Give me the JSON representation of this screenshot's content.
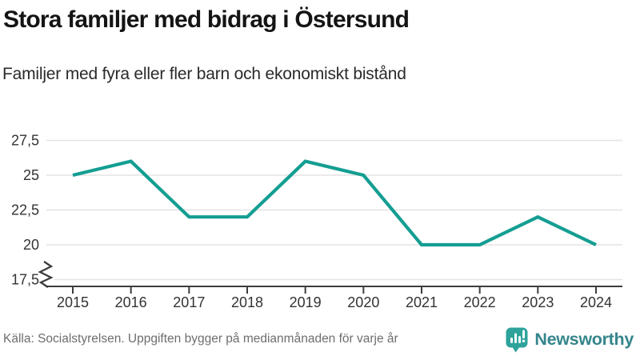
{
  "header": {
    "title": "Stora familjer med bidrag i Östersund",
    "subtitle": "Familjer med fyra eller fler barn och ekonomiskt bistånd"
  },
  "chart_data": {
    "type": "line",
    "title": "Stora familjer med bidrag i Östersund",
    "subtitle": "Familjer med fyra eller fler barn och ekonomiskt bistånd",
    "x": [
      2015,
      2016,
      2017,
      2018,
      2019,
      2020,
      2021,
      2022,
      2023,
      2024
    ],
    "series": [
      {
        "name": "Familjer med fyra eller fler barn och ekonomiskt bistånd",
        "values": [
          25,
          26,
          22,
          22,
          26,
          25,
          20,
          20,
          22,
          20
        ]
      }
    ],
    "xlabel": "",
    "ylabel": "",
    "ylim": [
      17.5,
      27.5
    ],
    "yticks": [
      {
        "value": 17.5,
        "label": "17,5"
      },
      {
        "value": 20,
        "label": "20"
      },
      {
        "value": 22.5,
        "label": "22,5"
      },
      {
        "value": 25,
        "label": "25"
      },
      {
        "value": 27.5,
        "label": "27,5"
      }
    ],
    "axis_break": true,
    "grid": "horizontal",
    "legend": "none",
    "line_color": "#149E92"
  },
  "footer": {
    "source": "Källa: Socialstyrelsen. Uppgiften bygger på medianmånaden för varje år",
    "brand": "Newsworthy"
  },
  "colors": {
    "line": "#149E92",
    "gridline": "#e3e3e3",
    "axis": "#3d3d3d",
    "tick_label": "#333333",
    "source_text": "#6e6e6e",
    "logo_icon": "#2EA39B",
    "wordmark": "#35858C"
  }
}
